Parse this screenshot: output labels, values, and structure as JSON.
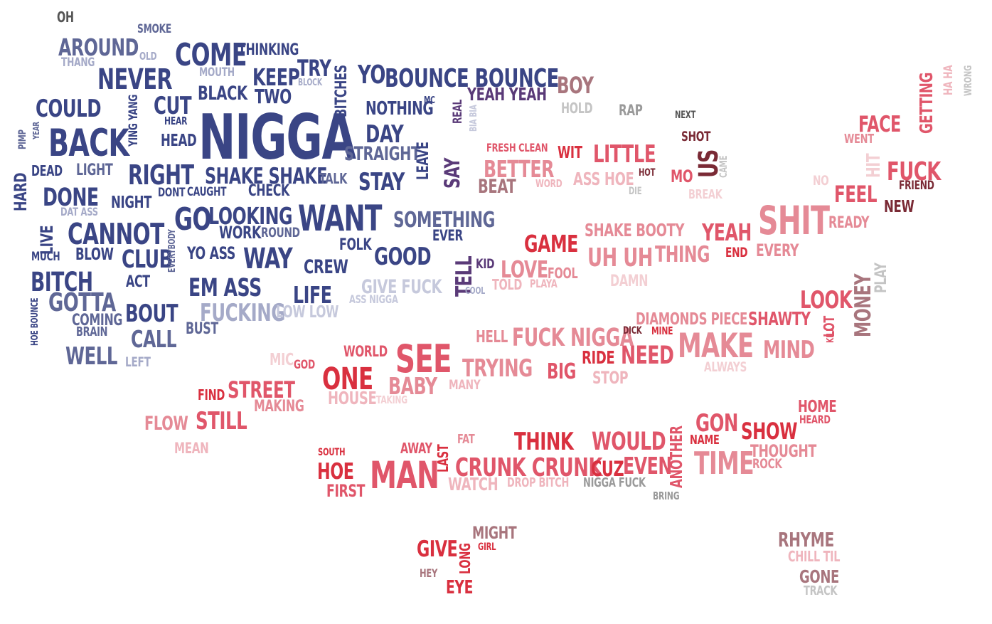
{
  "colors": {
    "navy": "#3a4585",
    "navy_mid": "#5f6796",
    "navy_light": "#a5aac8",
    "navy_pale": "#c6c9dc",
    "purple": "#5a3a78",
    "maroon": "#7a2a35",
    "mauve": "#a8757d",
    "red": "#d9303f",
    "red_mid": "#e0566a",
    "pink": "#e58a96",
    "pink_light": "#efb5bd",
    "pink_pale": "#f3cfd3",
    "gray": "#9a9a9a",
    "gray_light": "#c4c4c4",
    "dark": "#555555"
  },
  "words": [
    {
      "t": "OH",
      "c": "dark"
    },
    {
      "t": "SMOKE",
      "c": "navy_mid"
    },
    {
      "t": "AROUND",
      "c": "navy_mid"
    },
    {
      "t": "OLD",
      "c": "navy_light"
    },
    {
      "t": "THANG",
      "c": "navy_light"
    },
    {
      "t": "COME",
      "c": "navy"
    },
    {
      "t": "THINKING",
      "c": "navy"
    },
    {
      "t": "TRY",
      "c": "navy"
    },
    {
      "t": "NEVER",
      "c": "navy"
    },
    {
      "t": "MOUTH",
      "c": "navy_light"
    },
    {
      "t": "KEEP",
      "c": "navy"
    },
    {
      "t": "BLOCK",
      "c": "navy_light"
    },
    {
      "t": "BITCHES",
      "c": "navy"
    },
    {
      "t": "YO",
      "c": "navy"
    },
    {
      "t": "BOUNCE BOUNCE",
      "c": "navy"
    },
    {
      "t": "COULD",
      "c": "navy"
    },
    {
      "t": "CUT",
      "c": "navy"
    },
    {
      "t": "BLACK",
      "c": "navy"
    },
    {
      "t": "TWO",
      "c": "navy"
    },
    {
      "t": "NOTHING",
      "c": "navy"
    },
    {
      "t": "MC",
      "c": "navy"
    },
    {
      "t": "YEAH YEAH",
      "c": "purple"
    },
    {
      "t": "YING YANG",
      "c": "navy"
    },
    {
      "t": "HEAR",
      "c": "navy"
    },
    {
      "t": "NIGGA",
      "c": "navy"
    },
    {
      "t": "DAY",
      "c": "navy"
    },
    {
      "t": "REAL",
      "c": "purple"
    },
    {
      "t": "BIA BIA",
      "c": "navy_pale"
    },
    {
      "t": "PIMP",
      "c": "navy_mid"
    },
    {
      "t": "YEAR",
      "c": "navy_mid"
    },
    {
      "t": "BACK",
      "c": "navy"
    },
    {
      "t": "HEAD",
      "c": "navy"
    },
    {
      "t": "STRAIGHT",
      "c": "navy_mid"
    },
    {
      "t": "LEAVE",
      "c": "navy"
    },
    {
      "t": "SAY",
      "c": "purple"
    },
    {
      "t": "HARD",
      "c": "navy"
    },
    {
      "t": "DEAD",
      "c": "navy"
    },
    {
      "t": "LIGHT",
      "c": "navy_mid"
    },
    {
      "t": "RIGHT",
      "c": "navy"
    },
    {
      "t": "SHAKE SHAKE",
      "c": "navy"
    },
    {
      "t": "TALK",
      "c": "navy_mid"
    },
    {
      "t": "STAY",
      "c": "navy"
    },
    {
      "t": "DONE",
      "c": "navy"
    },
    {
      "t": "DONT",
      "c": "navy"
    },
    {
      "t": "CAUGHT",
      "c": "navy"
    },
    {
      "t": "CHECK",
      "c": "navy"
    },
    {
      "t": "NIGHT",
      "c": "navy"
    },
    {
      "t": "DAT ASS",
      "c": "navy_light"
    },
    {
      "t": "GO",
      "c": "navy"
    },
    {
      "t": "LOOKING",
      "c": "navy"
    },
    {
      "t": "WANT",
      "c": "navy"
    },
    {
      "t": "SOMETHING",
      "c": "navy_mid"
    },
    {
      "t": "LIVE",
      "c": "navy"
    },
    {
      "t": "CANNOT",
      "c": "navy"
    },
    {
      "t": "WORK",
      "c": "navy"
    },
    {
      "t": "ROUND",
      "c": "navy_mid"
    },
    {
      "t": "EVER",
      "c": "navy"
    },
    {
      "t": "MUCH",
      "c": "navy"
    },
    {
      "t": "BLOW",
      "c": "navy"
    },
    {
      "t": "CLUB",
      "c": "navy"
    },
    {
      "t": "EVERYBODY",
      "c": "navy_mid"
    },
    {
      "t": "YO ASS",
      "c": "navy"
    },
    {
      "t": "WAY",
      "c": "navy"
    },
    {
      "t": "CREW",
      "c": "navy"
    },
    {
      "t": "FOLK",
      "c": "navy"
    },
    {
      "t": "GOOD",
      "c": "navy"
    },
    {
      "t": "TELL",
      "c": "purple"
    },
    {
      "t": "KID",
      "c": "purple"
    },
    {
      "t": "BITCH",
      "c": "navy"
    },
    {
      "t": "ACT",
      "c": "navy"
    },
    {
      "t": "EM ASS",
      "c": "navy"
    },
    {
      "t": "LIFE",
      "c": "navy"
    },
    {
      "t": "GIVE FUCK",
      "c": "navy_pale"
    },
    {
      "t": "ASS NIGGA",
      "c": "navy_pale"
    },
    {
      "t": "COOL",
      "c": "navy_light"
    },
    {
      "t": "HOE BOUNCE",
      "c": "navy"
    },
    {
      "t": "GOTTA",
      "c": "navy_mid"
    },
    {
      "t": "BOUT",
      "c": "navy"
    },
    {
      "t": "FUCKING",
      "c": "navy_light"
    },
    {
      "t": "LOW LOW",
      "c": "navy_pale"
    },
    {
      "t": "COMING",
      "c": "navy_mid"
    },
    {
      "t": "BRAIN",
      "c": "navy_mid"
    },
    {
      "t": "CALL",
      "c": "navy_mid"
    },
    {
      "t": "BUST",
      "c": "navy_mid"
    },
    {
      "t": "WELL",
      "c": "navy_mid"
    },
    {
      "t": "LEFT",
      "c": "navy_light"
    },
    {
      "t": "BOY",
      "c": "mauve"
    },
    {
      "t": "HOLD",
      "c": "gray_light"
    },
    {
      "t": "RAP",
      "c": "gray"
    },
    {
      "t": "NEXT",
      "c": "dark"
    },
    {
      "t": "HA HA",
      "c": "pink_light"
    },
    {
      "t": "WRONG",
      "c": "gray_light"
    },
    {
      "t": "GETTING",
      "c": "red_mid"
    },
    {
      "t": "FACE",
      "c": "red_mid"
    },
    {
      "t": "WENT",
      "c": "pink"
    },
    {
      "t": "SHOT",
      "c": "maroon"
    },
    {
      "t": "FRESH CLEAN",
      "c": "red_mid"
    },
    {
      "t": "WIT",
      "c": "red"
    },
    {
      "t": "LITTLE",
      "c": "red_mid"
    },
    {
      "t": "US",
      "c": "maroon"
    },
    {
      "t": "CAME",
      "c": "gray_light"
    },
    {
      "t": "HIT",
      "c": "pink_pale"
    },
    {
      "t": "FUCK",
      "c": "red_mid"
    },
    {
      "t": "BETTER",
      "c": "pink"
    },
    {
      "t": "ASS HOE",
      "c": "pink_light"
    },
    {
      "t": "HOT",
      "c": "maroon"
    },
    {
      "t": "WORD",
      "c": "pink_light"
    },
    {
      "t": "MO",
      "c": "red_mid"
    },
    {
      "t": "BEAT",
      "c": "mauve"
    },
    {
      "t": "DIE",
      "c": "gray_light"
    },
    {
      "t": "BREAK",
      "c": "pink_pale"
    },
    {
      "t": "NO",
      "c": "pink_pale"
    },
    {
      "t": "FRIEND",
      "c": "maroon"
    },
    {
      "t": "FEEL",
      "c": "red_mid"
    },
    {
      "t": "NEW",
      "c": "maroon"
    },
    {
      "t": "SHIT",
      "c": "pink"
    },
    {
      "t": "READY",
      "c": "pink"
    },
    {
      "t": "SHAKE BOOTY",
      "c": "pink"
    },
    {
      "t": "YEAH",
      "c": "red_mid"
    },
    {
      "t": "GAME",
      "c": "red"
    },
    {
      "t": "END",
      "c": "red"
    },
    {
      "t": "EVERY",
      "c": "pink"
    },
    {
      "t": "UH UH",
      "c": "pink"
    },
    {
      "t": "THING",
      "c": "pink"
    },
    {
      "t": "LOVE",
      "c": "pink"
    },
    {
      "t": "FOOL",
      "c": "pink"
    },
    {
      "t": "TOLD",
      "c": "pink_light"
    },
    {
      "t": "PLAYA",
      "c": "pink_light"
    },
    {
      "t": "DAMN",
      "c": "pink_pale"
    },
    {
      "t": "PLAY",
      "c": "gray_light"
    },
    {
      "t": "LOOK",
      "c": "red_mid"
    },
    {
      "t": "MONEY",
      "c": "mauve"
    },
    {
      "t": "DIAMONDS PIECE",
      "c": "pink"
    },
    {
      "t": "SHAWTY",
      "c": "red_mid"
    },
    {
      "t": "LOT",
      "c": "red_mid"
    },
    {
      "t": "KILL",
      "c": "red_mid"
    },
    {
      "t": "HELL",
      "c": "pink"
    },
    {
      "t": "FUCK NIGGA",
      "c": "pink"
    },
    {
      "t": "DICK",
      "c": "maroon"
    },
    {
      "t": "MINE",
      "c": "red"
    },
    {
      "t": "MAKE",
      "c": "pink"
    },
    {
      "t": "MIND",
      "c": "pink"
    },
    {
      "t": "ALWAYS",
      "c": "pink_pale"
    },
    {
      "t": "WORLD",
      "c": "red_mid"
    },
    {
      "t": "SEE",
      "c": "red_mid"
    },
    {
      "t": "TRYING",
      "c": "pink"
    },
    {
      "t": "BIG",
      "c": "red_mid"
    },
    {
      "t": "RIDE",
      "c": "red"
    },
    {
      "t": "NEED",
      "c": "red_mid"
    },
    {
      "t": "STOP",
      "c": "pink_light"
    },
    {
      "t": "MIC",
      "c": "pink_pale"
    },
    {
      "t": "GOD",
      "c": "red_mid"
    },
    {
      "t": "ONE",
      "c": "red"
    },
    {
      "t": "BABY",
      "c": "pink"
    },
    {
      "t": "MANY",
      "c": "pink_light"
    },
    {
      "t": "FIND",
      "c": "red"
    },
    {
      "t": "STREET",
      "c": "red_mid"
    },
    {
      "t": "MAKING",
      "c": "pink"
    },
    {
      "t": "HOUSE",
      "c": "pink_light"
    },
    {
      "t": "TAKING",
      "c": "pink_pale"
    },
    {
      "t": "FLOW",
      "c": "pink"
    },
    {
      "t": "STILL",
      "c": "red_mid"
    },
    {
      "t": "MEAN",
      "c": "pink_light"
    },
    {
      "t": "HOME",
      "c": "red_mid"
    },
    {
      "t": "HEARD",
      "c": "red_mid"
    },
    {
      "t": "GON",
      "c": "red_mid"
    },
    {
      "t": "SHOW",
      "c": "red"
    },
    {
      "t": "ANOTHER",
      "c": "red_mid"
    },
    {
      "t": "NAME",
      "c": "red"
    },
    {
      "t": "THOUGHT",
      "c": "pink"
    },
    {
      "t": "ROCK",
      "c": "pink"
    },
    {
      "t": "SOUTH",
      "c": "red"
    },
    {
      "t": "AWAY",
      "c": "red_mid"
    },
    {
      "t": "FAT",
      "c": "pink"
    },
    {
      "t": "THINK",
      "c": "red"
    },
    {
      "t": "WOULD",
      "c": "red_mid"
    },
    {
      "t": "TIME",
      "c": "pink"
    },
    {
      "t": "LAST",
      "c": "red"
    },
    {
      "t": "HOE",
      "c": "red"
    },
    {
      "t": "MAN",
      "c": "red_mid"
    },
    {
      "t": "CRUNK CRUNK",
      "c": "red_mid"
    },
    {
      "t": "CUZ",
      "c": "red"
    },
    {
      "t": "EVEN",
      "c": "red_mid"
    },
    {
      "t": "FIRST",
      "c": "red_mid"
    },
    {
      "t": "WATCH",
      "c": "pink_light"
    },
    {
      "t": "DROP BITCH",
      "c": "pink_light"
    },
    {
      "t": "NIGGA FUCK",
      "c": "gray"
    },
    {
      "t": "BRING",
      "c": "gray"
    },
    {
      "t": "MIGHT",
      "c": "mauve"
    },
    {
      "t": "GIRL",
      "c": "red"
    },
    {
      "t": "GIVE",
      "c": "red"
    },
    {
      "t": "LONG",
      "c": "red"
    },
    {
      "t": "HEY",
      "c": "mauve"
    },
    {
      "t": "EYE",
      "c": "red"
    },
    {
      "t": "RHYME",
      "c": "mauve"
    },
    {
      "t": "CHILL TIL",
      "c": "pink_light"
    },
    {
      "t": "GONE",
      "c": "mauve"
    },
    {
      "t": "TRACK",
      "c": "gray_light"
    }
  ]
}
